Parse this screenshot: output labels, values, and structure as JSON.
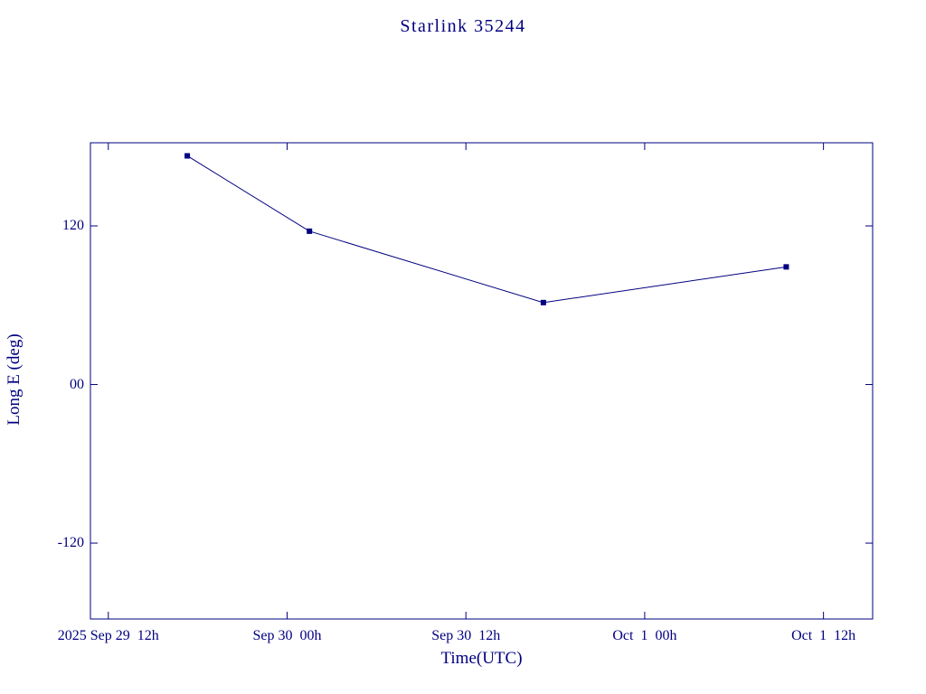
{
  "colors": {
    "ink": "#000080",
    "background": "#ffffff"
  },
  "chart_data": {
    "type": "line",
    "title": "Starlink 35244",
    "xlabel": "Time(UTC)",
    "ylabel": "Long E (deg)",
    "x_unit": "hours since 2025 Sep 29 00h UTC",
    "xlim": [
      34.8,
      87.3
    ],
    "ylim": [
      -177.4,
      182.9
    ],
    "grid": false,
    "legend": false,
    "line_color": "#000080",
    "marker": "square",
    "x_ticks": [
      {
        "hours": 36,
        "label": "2025 Sep 29  12h"
      },
      {
        "hours": 48,
        "label": "Sep 30  00h"
      },
      {
        "hours": 60,
        "label": "Sep 30  12h"
      },
      {
        "hours": 72,
        "label": "Oct  1  00h"
      },
      {
        "hours": 84,
        "label": "Oct  1  12h"
      }
    ],
    "y_ticks": [
      {
        "value": 120,
        "label": "120"
      },
      {
        "value": 0,
        "label": "00"
      },
      {
        "value": -120,
        "label": "-120"
      }
    ],
    "series": [
      {
        "name": "Long E",
        "points": [
          {
            "hours": 41.3,
            "time_approx": "Sep 29 ~17h",
            "value": 173
          },
          {
            "hours": 49.5,
            "time_approx": "Sep 30 ~01h",
            "value": 116
          },
          {
            "hours": 65.2,
            "time_approx": "Sep 30 ~17h",
            "value": 62
          },
          {
            "hours": 81.5,
            "time_approx": "Oct 1 ~09h",
            "value": 89
          }
        ]
      }
    ]
  }
}
